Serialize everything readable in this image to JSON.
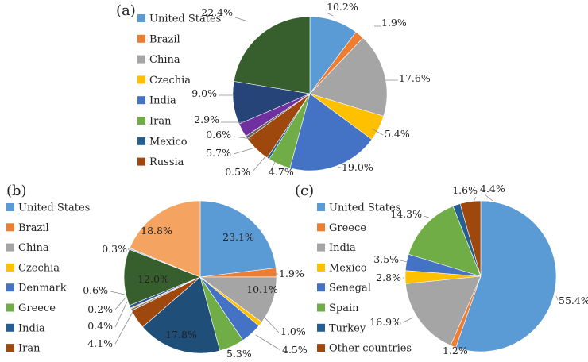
{
  "chart_data": [
    {
      "panel": "(a)",
      "type": "pie",
      "unit": "%",
      "legend": [
        "United States",
        "Brazil",
        "China",
        "Czechia",
        "India",
        "Iran",
        "Mexico",
        "Russia"
      ],
      "slices": [
        {
          "name": "United States",
          "value": 10.2,
          "label": "10.2%",
          "color": "#5B9BD5"
        },
        {
          "name": "Brazil",
          "value": 1.9,
          "label": "1.9%",
          "color": "#ED7D31"
        },
        {
          "name": "China",
          "value": 17.6,
          "label": "17.6%",
          "color": "#A5A5A5"
        },
        {
          "name": "Czechia",
          "value": 5.4,
          "label": "5.4%",
          "color": "#FFC000"
        },
        {
          "name": "India",
          "value": 19.0,
          "label": "19.0%",
          "color": "#4472C4"
        },
        {
          "name": "Iran",
          "value": 4.7,
          "label": "4.7%",
          "color": "#70AD47"
        },
        {
          "name": "Mexico",
          "value": 0.5,
          "label": "0.5%",
          "color": "#255E91"
        },
        {
          "name": "Russia",
          "value": 5.7,
          "label": "5.7%",
          "color": "#9E480E"
        },
        {
          "name": "",
          "value": 0.6,
          "label": "0.6%",
          "color": "#636363"
        },
        {
          "name": "",
          "value": 2.9,
          "label": "2.9%",
          "color": "#7030A0"
        },
        {
          "name": "",
          "value": 9.0,
          "label": "9.0%",
          "color": "#264478"
        },
        {
          "name": "",
          "value": 22.4,
          "label": "22.4%",
          "color": "#375F2E"
        }
      ]
    },
    {
      "panel": "(b)",
      "type": "pie",
      "unit": "%",
      "legend": [
        "United States",
        "Brazil",
        "China",
        "Czechia",
        "Denmark",
        "Greece",
        "India",
        "Iran"
      ],
      "slices": [
        {
          "name": "United States",
          "value": 23.1,
          "label": "23.1%",
          "color": "#5B9BD5"
        },
        {
          "name": "",
          "value": 1.9,
          "label": "1.9%",
          "color": "#ED7D31"
        },
        {
          "name": "",
          "value": 10.1,
          "label": "10.1%",
          "color": "#A5A5A5"
        },
        {
          "name": "",
          "value": 1.0,
          "label": "1.0%",
          "color": "#FFC000"
        },
        {
          "name": "",
          "value": 4.5,
          "label": "4.5%",
          "color": "#4472C4"
        },
        {
          "name": "",
          "value": 5.3,
          "label": "5.3%",
          "color": "#70AD47"
        },
        {
          "name": "",
          "value": 17.8,
          "label": "17.8%",
          "color": "#1F4E79"
        },
        {
          "name": "",
          "value": 4.1,
          "label": "4.1%",
          "color": "#9E480E"
        },
        {
          "name": "",
          "value": 0.4,
          "label": "0.4%",
          "color": "#7F7F7F"
        },
        {
          "name": "",
          "value": 0.2,
          "label": "0.2%",
          "color": "#C9A400"
        },
        {
          "name": "",
          "value": 0.6,
          "label": "0.6%",
          "color": "#2F5597"
        },
        {
          "name": "",
          "value": 12.0,
          "label": "12.0%",
          "color": "#375F2E"
        },
        {
          "name": "",
          "value": 0.3,
          "label": "0.3%",
          "color": "#9DC3E6"
        },
        {
          "name": "",
          "value": 18.8,
          "label": "18.8%",
          "color": "#F4A460"
        }
      ]
    },
    {
      "panel": "(c)",
      "type": "pie",
      "unit": "%",
      "legend": [
        "United States",
        "Greece",
        "India",
        "Mexico",
        "Senegal",
        "Spain",
        "Turkey",
        "Other countries"
      ],
      "slices": [
        {
          "name": "United States",
          "value": 55.4,
          "label": "55.4%",
          "color": "#5B9BD5"
        },
        {
          "name": "Greece",
          "value": 1.2,
          "label": "1.2%",
          "color": "#ED7D31"
        },
        {
          "name": "India",
          "value": 16.9,
          "label": "16.9%",
          "color": "#A5A5A5"
        },
        {
          "name": "Mexico",
          "value": 2.8,
          "label": "2.8%",
          "color": "#FFC000"
        },
        {
          "name": "Senegal",
          "value": 3.5,
          "label": "3.5%",
          "color": "#4472C4"
        },
        {
          "name": "Spain",
          "value": 14.3,
          "label": "14.3%",
          "color": "#70AD47"
        },
        {
          "name": "Turkey",
          "value": 1.6,
          "label": "1.6%",
          "color": "#255E91"
        },
        {
          "name": "Other countries",
          "value": 4.4,
          "label": "4.4%",
          "color": "#9E480E"
        }
      ]
    }
  ]
}
